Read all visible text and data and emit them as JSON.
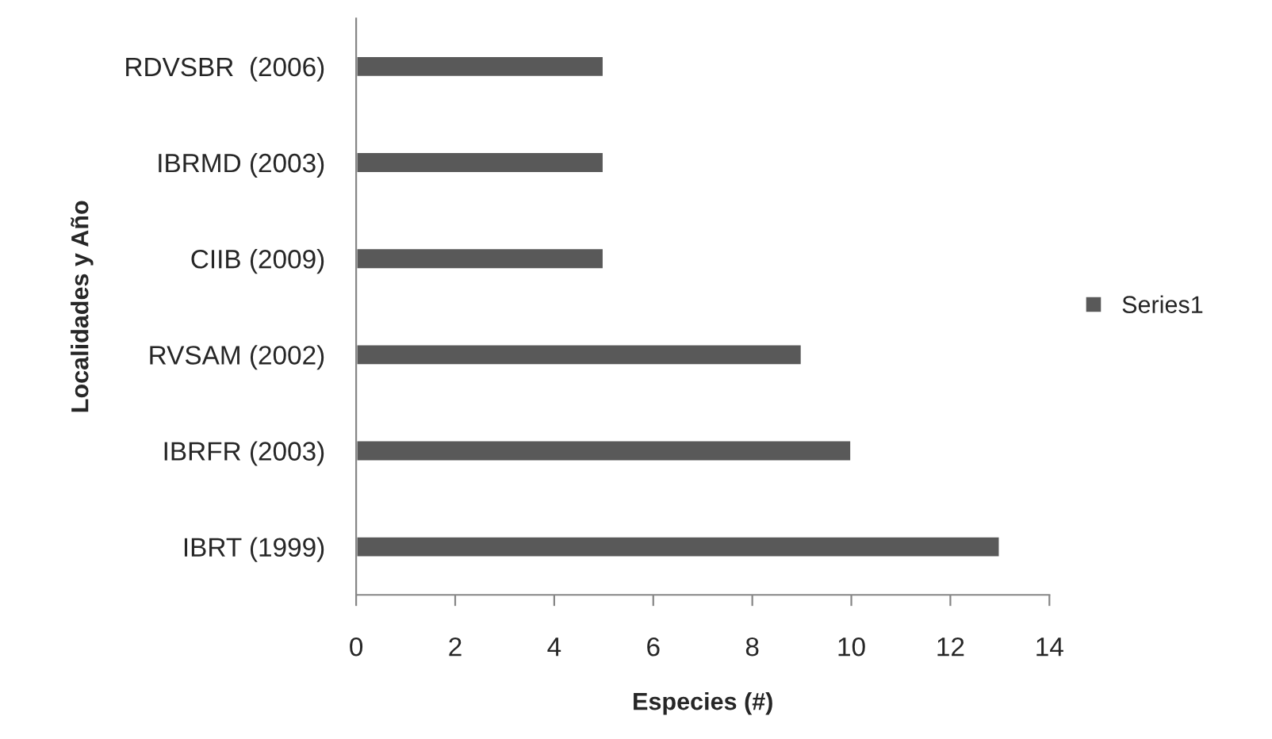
{
  "chart_data": {
    "type": "bar",
    "orientation": "horizontal",
    "xlabel": "Especies (#)",
    "ylabel": "Localidades y Año",
    "categories": [
      "RDVSBR  (2006)",
      "IBRMD (2003)",
      "CIIB (2009)",
      "RVSAM (2002)",
      "IBRFR (2003)",
      "IBRT (1999)"
    ],
    "series": [
      {
        "name": "Series1",
        "color": "#595959",
        "values": [
          5,
          5,
          5,
          9,
          10,
          13
        ]
      }
    ],
    "xlim": [
      0,
      14
    ],
    "xticks": [
      0,
      2,
      4,
      6,
      8,
      10,
      12,
      14
    ],
    "grid": false,
    "legend": "right"
  }
}
